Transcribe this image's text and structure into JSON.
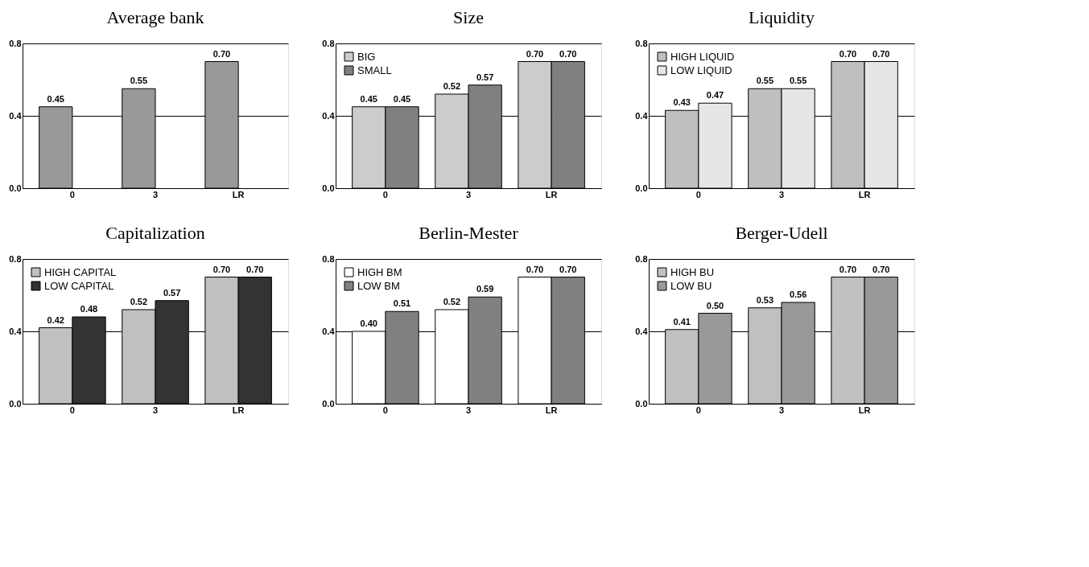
{
  "chart_data": [
    {
      "type": "bar",
      "title": "Average bank",
      "categories": [
        "0",
        "3",
        "LR"
      ],
      "series": [
        {
          "color": "#999999",
          "values": [
            0.45,
            0.55,
            0.7
          ],
          "value_labels": [
            "0.45",
            "0.55",
            "0.70"
          ]
        }
      ],
      "ylim": [
        0,
        0.8
      ],
      "yticks": [
        {
          "value": 0,
          "label": "0.0"
        },
        {
          "value": 0.4,
          "label": "0.4"
        },
        {
          "value": 0.8,
          "label": "0.8"
        }
      ],
      "grid": "y",
      "legend": false
    },
    {
      "type": "bar",
      "title": "Size",
      "categories": [
        "0",
        "3",
        "LR"
      ],
      "series": [
        {
          "name": "BIG",
          "color": "#cccccc",
          "values": [
            0.45,
            0.52,
            0.7
          ],
          "value_labels": [
            "0.45",
            "0.52",
            "0.70"
          ]
        },
        {
          "name": "SMALL",
          "color": "#808080",
          "values": [
            0.45,
            0.57,
            0.7
          ],
          "value_labels": [
            "0.45",
            "0.57",
            "0.70"
          ]
        }
      ],
      "ylim": [
        0,
        0.8
      ],
      "yticks": [
        {
          "value": 0,
          "label": "0.0"
        },
        {
          "value": 0.4,
          "label": "0.4"
        },
        {
          "value": 0.8,
          "label": "0.8"
        }
      ],
      "grid": "y",
      "legend": "top left"
    },
    {
      "type": "bar",
      "title": "Liquidity",
      "categories": [
        "0",
        "3",
        "LR"
      ],
      "series": [
        {
          "name": "HIGH LIQUID",
          "color": "#bfbfbf",
          "values": [
            0.43,
            0.55,
            0.7
          ],
          "value_labels": [
            "0.43",
            "0.55",
            "0.70"
          ]
        },
        {
          "name": "LOW LIQUID",
          "color": "#e6e6e6",
          "values": [
            0.47,
            0.55,
            0.7
          ],
          "value_labels": [
            "0.47",
            "0.55",
            "0.70"
          ]
        }
      ],
      "ylim": [
        0,
        0.8
      ],
      "yticks": [
        {
          "value": 0,
          "label": "0.0"
        },
        {
          "value": 0.4,
          "label": "0.4"
        },
        {
          "value": 0.8,
          "label": "0.8"
        }
      ],
      "grid": "y",
      "legend": "top left"
    },
    {
      "type": "bar",
      "title": "Capitalization",
      "categories": [
        "0",
        "3",
        "LR"
      ],
      "series": [
        {
          "name": "HIGH CAPITAL",
          "color": "#c0c0c0",
          "values": [
            0.42,
            0.52,
            0.7
          ],
          "value_labels": [
            "0.42",
            "0.52",
            "0.70"
          ]
        },
        {
          "name": "LOW CAPITAL",
          "color": "#333333",
          "values": [
            0.48,
            0.57,
            0.7
          ],
          "value_labels": [
            "0.48",
            "0.57",
            "0.70"
          ]
        }
      ],
      "ylim": [
        0,
        0.8
      ],
      "yticks": [
        {
          "value": 0,
          "label": "0.0"
        },
        {
          "value": 0.4,
          "label": "0.4"
        },
        {
          "value": 0.8,
          "label": "0.8"
        }
      ],
      "grid": "y",
      "legend": "top left"
    },
    {
      "type": "bar",
      "title": "Berlin-Mester",
      "categories": [
        "0",
        "3",
        "LR"
      ],
      "series": [
        {
          "name": "HIGH BM",
          "color": "#ffffff",
          "values": [
            0.4,
            0.52,
            0.7
          ],
          "value_labels": [
            "0.40",
            "0.52",
            "0.70"
          ]
        },
        {
          "name": "LOW BM",
          "color": "#808080",
          "values": [
            0.51,
            0.59,
            0.7
          ],
          "value_labels": [
            "0.51",
            "0.59",
            "0.70"
          ]
        }
      ],
      "ylim": [
        0,
        0.8
      ],
      "yticks": [
        {
          "value": 0,
          "label": "0.0"
        },
        {
          "value": 0.4,
          "label": "0.4"
        },
        {
          "value": 0.8,
          "label": "0.8"
        }
      ],
      "grid": "y",
      "legend": "top left"
    },
    {
      "type": "bar",
      "title": "Berger-Udell",
      "categories": [
        "0",
        "3",
        "LR"
      ],
      "series": [
        {
          "name": "HIGH BU",
          "color": "#c0c0c0",
          "values": [
            0.41,
            0.53,
            0.7
          ],
          "value_labels": [
            "0.41",
            "0.53",
            "0.70"
          ]
        },
        {
          "name": "LOW BU",
          "color": "#999999",
          "values": [
            0.5,
            0.56,
            0.7
          ],
          "value_labels": [
            "0.50",
            "0.56",
            "0.70"
          ]
        }
      ],
      "ylim": [
        0,
        0.8
      ],
      "yticks": [
        {
          "value": 0,
          "label": "0.0"
        },
        {
          "value": 0.4,
          "label": "0.4"
        },
        {
          "value": 0.8,
          "label": "0.8"
        }
      ],
      "grid": "y",
      "legend": "top left"
    }
  ]
}
